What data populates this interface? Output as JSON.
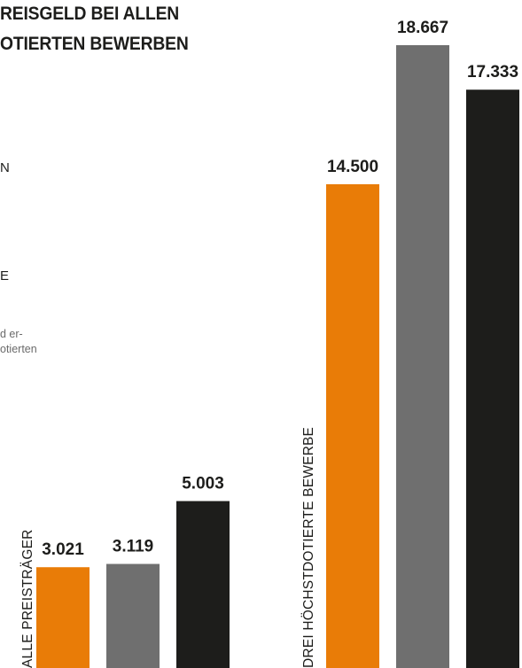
{
  "title_lines": [
    "REISGELD BEI ALLEN",
    "OTIERTEN BEWERBEN"
  ],
  "legend_fragments": [
    "N",
    "E"
  ],
  "note_lines": [
    "d er-",
    "otierten"
  ],
  "colors": {
    "orange": "#e97c07",
    "gray": "#6f6f6f",
    "black": "#1d1d1b"
  },
  "chart_data": {
    "type": "bar",
    "title": "REISGELD BEI ALLEN OTIERTEN BEWERBEN",
    "categories": [
      "ALLE PREISTRÄGER",
      "DREI HÖCHSTDOTIERTE BEWERBE"
    ],
    "series": [
      {
        "color": "#e97c07",
        "values": [
          3021,
          14500
        ],
        "labels": [
          "3.021",
          "14.500"
        ]
      },
      {
        "color": "#6f6f6f",
        "values": [
          3119,
          18667
        ],
        "labels": [
          "3.119",
          "18.667"
        ]
      },
      {
        "color": "#1d1d1b",
        "values": [
          5003,
          17333
        ],
        "labels": [
          "5.003",
          "17.333"
        ]
      }
    ],
    "ylim": [
      0,
      18667
    ],
    "grid": false,
    "legend": "top-left"
  }
}
